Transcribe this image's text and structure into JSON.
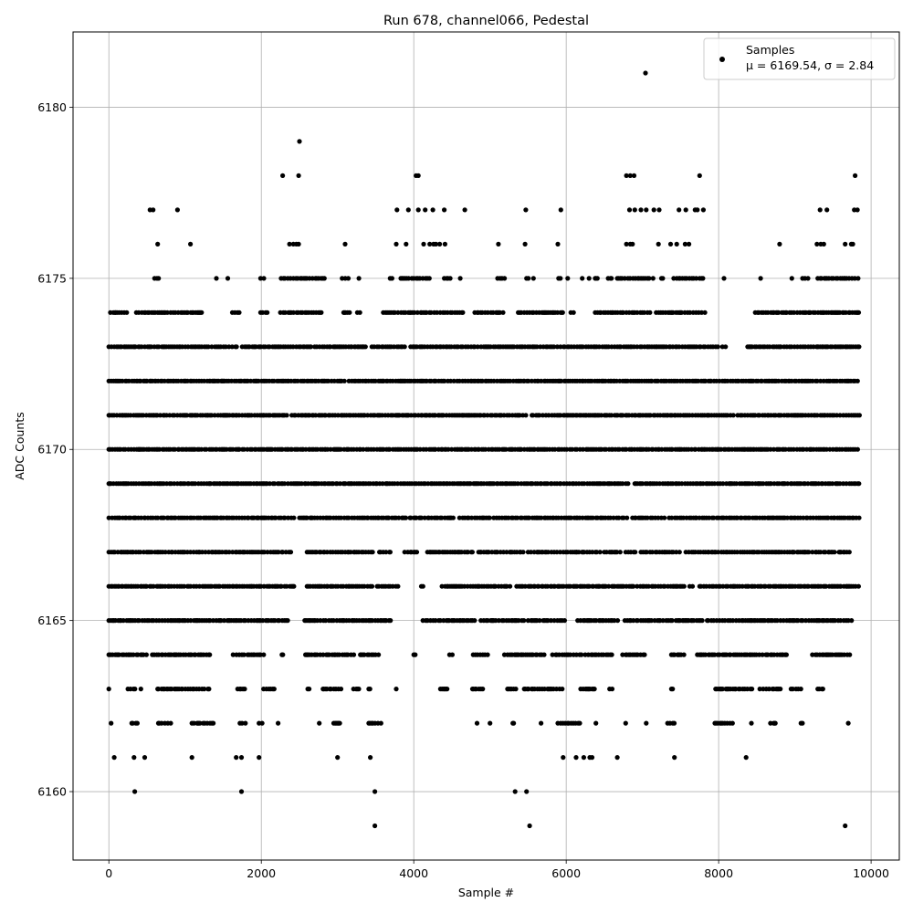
{
  "chart_data": {
    "type": "scatter",
    "title": "Run 678, channel066, Pedestal",
    "xlabel": "Sample #",
    "ylabel": "ADC Counts",
    "xlim": [
      -470,
      10370
    ],
    "ylim": [
      6158.0,
      6182.2
    ],
    "xticks": [
      0,
      2000,
      4000,
      6000,
      8000,
      10000
    ],
    "yticks": [
      6160,
      6165,
      6170,
      6175,
      6180
    ],
    "grid": true,
    "legend": {
      "placement": "top-right",
      "entries": [
        {
          "line1": "Samples",
          "line2": "μ = 6169.54, σ = 2.84"
        }
      ]
    },
    "series": [
      {
        "name": "Samples",
        "color": "#000000",
        "marker": "circle",
        "n_samples_approx": 9850,
        "level_rows": [
          {
            "y": 6181,
            "x": [
              7040
            ]
          },
          {
            "y": 6179,
            "x": [
              2500
            ]
          },
          {
            "y": 6178,
            "x": [
              2280,
              2490,
              4030,
              4060,
              6790,
              6840,
              6890,
              7750,
              9790
            ]
          },
          {
            "y": 6177,
            "x": [
              540,
              580,
              900,
              3780,
              3930,
              4060,
              4150,
              4250,
              4400,
              4670,
              5470,
              5930,
              6830,
              6900,
              6980,
              7050,
              7150,
              7220,
              7480,
              7570,
              7690,
              7720,
              7800,
              9330,
              9420,
              9780,
              9820
            ]
          },
          {
            "y": 6176,
            "x": [
              640,
              1070,
              2370,
              2420,
              2460,
              2490,
              3100,
              3770,
              3900,
              4130,
              4210,
              4260,
              4290,
              4340,
              4410,
              5110,
              5460,
              5890,
              6790,
              6840,
              6870,
              7210,
              7370,
              7450,
              7560,
              7610,
              8800,
              9290,
              9340,
              9380,
              9660,
              9740,
              9760
            ]
          },
          {
            "y": 6175,
            "x_ranges": [
              [
                600,
                680
              ],
              [
                1410,
                1420
              ],
              [
                1560,
                1570
              ],
              [
                1990,
                2040
              ],
              [
                2260,
                2850
              ],
              [
                3060,
                3160
              ],
              [
                3280,
                3290
              ],
              [
                3690,
                3720
              ],
              [
                3830,
                4240
              ],
              [
                4400,
                4480
              ],
              [
                4610,
                4620
              ],
              [
                5100,
                5200
              ],
              [
                5480,
                5520
              ],
              [
                5570,
                5580
              ],
              [
                5900,
                5950
              ],
              [
                6020,
                6040
              ],
              [
                6210,
                6220
              ],
              [
                6300,
                6310
              ],
              [
                6380,
                6420
              ],
              [
                6550,
                6600
              ],
              [
                6670,
                6790
              ],
              [
                6810,
                7090
              ],
              [
                7140,
                7160
              ],
              [
                7250,
                7270
              ],
              [
                7410,
                7800
              ],
              [
                8070,
                8080
              ],
              [
                8550,
                8560
              ],
              [
                8960,
                8970
              ],
              [
                9100,
                9200
              ],
              [
                9300,
                9850
              ]
            ]
          },
          {
            "y": 6174,
            "x_ranges": [
              [
                20,
                240
              ],
              [
                360,
                1240
              ],
              [
                1620,
                1720
              ],
              [
                1990,
                2080
              ],
              [
                2250,
                2820
              ],
              [
                3080,
                3180
              ],
              [
                3260,
                3320
              ],
              [
                3600,
                4650
              ],
              [
                4800,
                5200
              ],
              [
                5370,
                5970
              ],
              [
                6060,
                6100
              ],
              [
                6380,
                7100
              ],
              [
                7180,
                7830
              ],
              [
                8480,
                9850
              ]
            ]
          },
          {
            "y": 6173,
            "x_ranges": [
              [
                0,
                1320
              ],
              [
                1350,
                1700
              ],
              [
                1750,
                2650
              ],
              [
                2700,
                3400
              ],
              [
                3450,
                3900
              ],
              [
                3960,
                8000
              ],
              [
                8050,
                8110
              ],
              [
                8380,
                9850
              ]
            ]
          },
          {
            "y": 6172,
            "x_ranges": [
              [
                0,
                3100
              ],
              [
                3150,
                9850
              ]
            ]
          },
          {
            "y": 6171,
            "x_ranges": [
              [
                0,
                2350
              ],
              [
                2400,
                5500
              ],
              [
                5550,
                8200
              ],
              [
                8250,
                9850
              ]
            ]
          },
          {
            "y": 6170,
            "x_ranges": [
              [
                0,
                9850
              ]
            ]
          },
          {
            "y": 6169,
            "x_ranges": [
              [
                0,
                2480
              ],
              [
                2500,
                6820
              ],
              [
                6900,
                9850
              ]
            ]
          },
          {
            "y": 6168,
            "x_ranges": [
              [
                0,
                2450
              ],
              [
                2500,
                3900
              ],
              [
                3950,
                4550
              ],
              [
                4600,
                5000
              ],
              [
                5050,
                6800
              ],
              [
                6870,
                7300
              ],
              [
                7350,
                9850
              ]
            ]
          },
          {
            "y": 6167,
            "x_ranges": [
              [
                0,
                2230
              ],
              [
                2270,
                2400
              ],
              [
                2600,
                3500
              ],
              [
                3550,
                3700
              ],
              [
                3880,
                4050
              ],
              [
                4180,
                4800
              ],
              [
                4850,
                5450
              ],
              [
                5500,
                6450
              ],
              [
                6500,
                6720
              ],
              [
                6780,
                6930
              ],
              [
                6980,
                7500
              ],
              [
                7570,
                8580
              ],
              [
                8600,
                9200
              ],
              [
                9230,
                9520
              ],
              [
                9580,
                9720
              ]
            ]
          },
          {
            "y": 6166,
            "x_ranges": [
              [
                0,
                2450
              ],
              [
                2600,
                3480
              ],
              [
                3520,
                3800
              ],
              [
                4100,
                4150
              ],
              [
                4370,
                5300
              ],
              [
                5350,
                6900
              ],
              [
                6930,
                7550
              ],
              [
                7620,
                7680
              ],
              [
                7750,
                9850
              ]
            ]
          },
          {
            "y": 6165,
            "x_ranges": [
              [
                0,
                2350
              ],
              [
                2570,
                3500
              ],
              [
                3530,
                3700
              ],
              [
                4120,
                4800
              ],
              [
                4880,
                5450
              ],
              [
                5500,
                5660
              ],
              [
                5700,
                5780
              ],
              [
                5800,
                6000
              ],
              [
                6150,
                6700
              ],
              [
                6770,
                7400
              ],
              [
                7440,
                7800
              ],
              [
                7850,
                9750
              ]
            ]
          },
          {
            "y": 6164,
            "x_ranges": [
              [
                0,
                530
              ],
              [
                570,
                1330
              ],
              [
                1630,
                1780
              ],
              [
                1820,
                2060
              ],
              [
                2270,
                2290
              ],
              [
                2580,
                2890
              ],
              [
                2930,
                3230
              ],
              [
                3300,
                3560
              ],
              [
                4000,
                4020
              ],
              [
                4470,
                4510
              ],
              [
                4780,
                4980
              ],
              [
                5190,
                5720
              ],
              [
                5820,
                6200
              ],
              [
                6250,
                6600
              ],
              [
                6740,
                7050
              ],
              [
                7380,
                7550
              ],
              [
                7720,
                8580
              ],
              [
                8620,
                8920
              ],
              [
                9230,
                9720
              ]
            ]
          },
          {
            "y": 6163,
            "x_ranges": [
              [
                0,
                30
              ],
              [
                250,
                350
              ],
              [
                420,
                440
              ],
              [
                640,
                1260
              ],
              [
                1300,
                1350
              ],
              [
                1690,
                1810
              ],
              [
                2030,
                2170
              ],
              [
                2610,
                2630
              ],
              [
                2810,
                3050
              ],
              [
                3210,
                3310
              ],
              [
                3410,
                3450
              ],
              [
                3770,
                3780
              ],
              [
                4350,
                4440
              ],
              [
                4770,
                4940
              ],
              [
                5230,
                5360
              ],
              [
                5450,
                5960
              ],
              [
                6190,
                6390
              ],
              [
                6570,
                6620
              ],
              [
                7380,
                7400
              ],
              [
                7960,
                8460
              ],
              [
                8540,
                8820
              ],
              [
                8950,
                9100
              ],
              [
                9300,
                9370
              ]
            ]
          },
          {
            "y": 6162,
            "x_ranges": [
              [
                30,
                50
              ],
              [
                300,
                380
              ],
              [
                650,
                820
              ],
              [
                1090,
                1370
              ],
              [
                1720,
                1800
              ],
              [
                1970,
                2030
              ],
              [
                2220,
                2230
              ],
              [
                2760,
                2780
              ],
              [
                2950,
                3050
              ],
              [
                3410,
                3600
              ],
              [
                4830,
                4860
              ],
              [
                5000,
                5020
              ],
              [
                5300,
                5330
              ],
              [
                5670,
                5700
              ],
              [
                5890,
                6200
              ],
              [
                6390,
                6400
              ],
              [
                6780,
                6800
              ],
              [
                7050,
                7060
              ],
              [
                7330,
                7420
              ],
              [
                7950,
                8220
              ],
              [
                8430,
                8460
              ],
              [
                8680,
                8750
              ],
              [
                9080,
                9100
              ],
              [
                9700,
                9710
              ]
            ]
          },
          {
            "y": 6161,
            "x": [
              70,
              330,
              470,
              1090,
              1670,
              1740,
              1970,
              3000,
              3430,
              5960,
              6130,
              6230,
              6310,
              6340,
              6670,
              7420,
              8360
            ]
          },
          {
            "y": 6160,
            "x": [
              340,
              1740,
              3490,
              5330,
              5480
            ]
          },
          {
            "y": 6159,
            "x": [
              3490,
              5520,
              9660
            ]
          }
        ]
      }
    ]
  }
}
